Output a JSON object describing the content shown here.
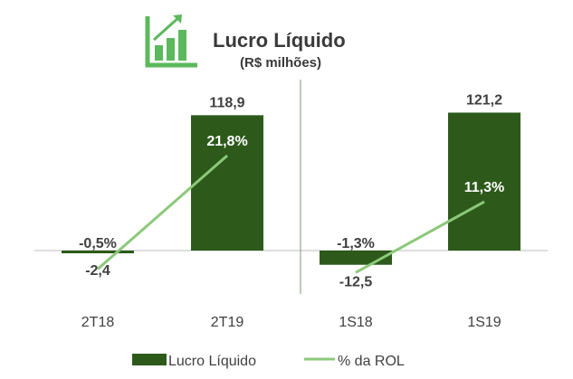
{
  "chart_data": {
    "type": "bar",
    "title": "Lucro Líquido",
    "subtitle": "(R$ milhões)",
    "categories": [
      "2T18",
      "2T19",
      "1S18",
      "1S19"
    ],
    "series": [
      {
        "name": "Lucro Líquido",
        "kind": "bar",
        "values": [
          -2.4,
          118.9,
          -12.5,
          121.2
        ],
        "labels": [
          "-2,4",
          "118,9",
          "-12,5",
          "121,2"
        ],
        "color": "#2d5a1b"
      },
      {
        "name": "% da ROL",
        "kind": "line",
        "groups": [
          [
            0,
            1
          ],
          [
            2,
            3
          ]
        ],
        "values": [
          -0.5,
          21.8,
          -1.3,
          11.3
        ],
        "labels": [
          "-0,5%",
          "21,8%",
          "-1,3%",
          "11,3%"
        ],
        "color": "#8cc87a"
      }
    ],
    "legend": "bottom",
    "grid": false,
    "icon": "bar-chart-growth-icon",
    "icon_color": "#5cb85c"
  }
}
